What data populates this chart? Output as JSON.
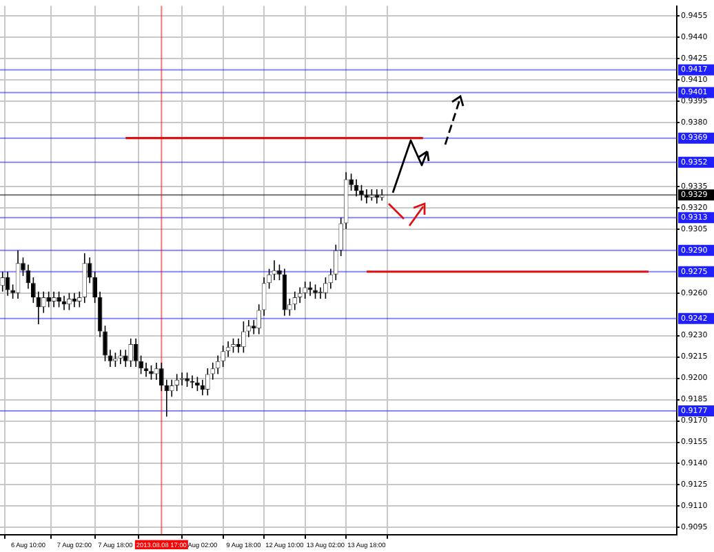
{
  "chart_data": {
    "type": "candlestick",
    "categories": [
      null,
      null,
      null,
      null,
      null,
      "6 Aug 10:00",
      null,
      null,
      null,
      null,
      null,
      null,
      null,
      null,
      "7 Aug 02:00",
      null,
      null,
      null,
      null,
      null,
      null,
      null,
      "7 Aug 18:00",
      null,
      null,
      null,
      null,
      null,
      null,
      null,
      null,
      "2013.08.08 17:00",
      null,
      null,
      null,
      null,
      null,
      null,
      null,
      "Aug 02:00",
      null,
      null,
      null,
      null,
      null,
      null,
      null,
      "9 Aug 18:00",
      null,
      null,
      null,
      null,
      null,
      null,
      null,
      "12 Aug 10:00",
      null,
      null,
      null,
      null,
      null,
      null,
      null,
      "13 Aug 02:00",
      null,
      null,
      null,
      null,
      null,
      null,
      null,
      "13 Aug 18:00",
      null,
      null,
      null,
      null,
      null,
      null,
      null,
      null,
      null,
      null,
      null,
      null,
      null,
      null,
      null,
      null,
      null,
      null,
      null,
      null,
      null,
      null,
      null,
      null,
      null,
      null,
      null,
      null,
      null,
      null,
      null,
      null,
      null,
      null,
      null,
      null,
      null,
      null,
      null,
      null,
      null,
      null,
      null,
      null,
      null,
      null,
      null,
      null,
      null,
      null,
      null,
      null,
      null,
      null,
      null,
      null,
      null,
      null,
      null,
      null
    ],
    "series": [
      {
        "type": "line",
        "color": "#e01010",
        "values": [
          null,
          null,
          null,
          null,
          null,
          null,
          null,
          null,
          null,
          null,
          null,
          null,
          null,
          null,
          null,
          null,
          null,
          null,
          null,
          null,
          null,
          null,
          null,
          null,
          0.9369,
          null,
          null,
          null,
          null,
          null,
          null,
          null,
          null,
          null,
          null,
          null,
          null,
          null,
          null,
          null,
          null,
          null,
          null,
          null,
          null,
          null,
          null,
          null,
          null,
          null,
          null,
          null,
          null,
          null,
          null,
          null,
          null,
          null,
          null,
          null,
          null,
          null,
          null,
          null,
          null,
          null,
          null,
          null,
          null,
          null,
          null,
          null,
          null,
          null,
          null,
          null,
          null,
          null,
          null,
          null,
          null,
          null,
          0.9369,
          null,
          null,
          null,
          null,
          null,
          null,
          null,
          null,
          null,
          null,
          null,
          null,
          null,
          null,
          null,
          null,
          null,
          null,
          null,
          null,
          null,
          null,
          null,
          null,
          null,
          null,
          null,
          null,
          null,
          null,
          null,
          null,
          null,
          null,
          null,
          null,
          null,
          null,
          null,
          null,
          null,
          null,
          null,
          null,
          null,
          null,
          null,
          null,
          null
        ]
      },
      {
        "type": "line",
        "color": "#e01010",
        "values": [
          null,
          null,
          null,
          null,
          null,
          null,
          null,
          null,
          null,
          null,
          null,
          null,
          null,
          null,
          null,
          null,
          null,
          null,
          null,
          null,
          null,
          null,
          null,
          null,
          null,
          null,
          null,
          null,
          null,
          null,
          null,
          null,
          null,
          null,
          null,
          null,
          null,
          null,
          null,
          null,
          null,
          null,
          null,
          null,
          null,
          null,
          null,
          null,
          null,
          null,
          null,
          null,
          null,
          null,
          null,
          null,
          null,
          null,
          null,
          null,
          null,
          null,
          null,
          null,
          null,
          null,
          null,
          null,
          null,
          null,
          null,
          0.9275,
          null,
          null,
          null,
          null,
          null,
          null,
          null,
          null,
          null,
          null,
          null,
          null,
          null,
          null,
          null,
          null,
          null,
          null,
          null,
          null,
          null,
          null,
          null,
          null,
          null,
          null,
          null,
          null,
          null,
          null,
          null,
          null,
          null,
          null,
          null,
          null,
          null,
          null,
          null,
          null,
          null,
          null,
          null,
          null,
          null,
          null,
          null,
          null,
          null,
          null,
          null,
          null,
          null,
          null,
          0.9275,
          null,
          null,
          null,
          null,
          null
        ]
      }
    ],
    "ohlc": [
      [
        0.9265,
        0.9275,
        0.9261,
        0.9271
      ],
      [
        0.9271,
        0.9275,
        0.9258,
        0.9262
      ],
      [
        0.9262,
        0.9266,
        0.9256,
        0.926
      ],
      [
        0.926,
        0.929,
        0.9256,
        0.9281
      ],
      [
        0.9281,
        0.9285,
        0.9272,
        0.9276
      ],
      [
        0.9276,
        0.928,
        0.9263,
        0.9267
      ],
      [
        0.9267,
        0.9271,
        0.9253,
        0.9257
      ],
      [
        0.9257,
        0.9261,
        0.9238,
        0.925
      ],
      [
        0.925,
        0.9261,
        0.9246,
        0.9257
      ],
      [
        0.9257,
        0.9261,
        0.925,
        0.9254
      ],
      [
        0.9254,
        0.9261,
        0.925,
        0.9257
      ],
      [
        0.9257,
        0.9261,
        0.925,
        0.9254
      ],
      [
        0.9254,
        0.9258,
        0.9248,
        0.9252
      ],
      [
        0.9252,
        0.926,
        0.9248,
        0.9256
      ],
      [
        0.9256,
        0.926,
        0.925,
        0.9254
      ],
      [
        0.9254,
        0.9261,
        0.925,
        0.9257
      ],
      [
        0.9257,
        0.9288,
        0.9253,
        0.9281
      ],
      [
        0.9281,
        0.9285,
        0.9267,
        0.9271
      ],
      [
        0.9271,
        0.9275,
        0.9253,
        0.9257
      ],
      [
        0.9257,
        0.9261,
        0.9229,
        0.9233
      ],
      [
        0.9233,
        0.9237,
        0.9212,
        0.9216
      ],
      [
        0.9216,
        0.922,
        0.9208,
        0.9212
      ],
      [
        0.9212,
        0.9218,
        0.9208,
        0.9214
      ],
      [
        0.9214,
        0.922,
        0.921,
        0.9216
      ],
      [
        0.9216,
        0.922,
        0.9208,
        0.9212
      ],
      [
        0.9212,
        0.9228,
        0.9208,
        0.9224
      ],
      [
        0.9224,
        0.9228,
        0.9208,
        0.9212
      ],
      [
        0.9212,
        0.9216,
        0.9203,
        0.9207
      ],
      [
        0.9207,
        0.9211,
        0.9201,
        0.9205
      ],
      [
        0.9205,
        0.9209,
        0.9199,
        0.9203
      ],
      [
        0.9203,
        0.9211,
        0.9199,
        0.9207
      ],
      [
        0.9207,
        0.9211,
        0.9191,
        0.9195
      ],
      [
        0.9195,
        0.9199,
        0.9173,
        0.9191
      ],
      [
        0.9191,
        0.9199,
        0.9187,
        0.9195
      ],
      [
        0.9195,
        0.9203,
        0.9191,
        0.9199
      ],
      [
        0.9199,
        0.9204,
        0.9195,
        0.92
      ],
      [
        0.92,
        0.9204,
        0.9194,
        0.9198
      ],
      [
        0.9198,
        0.9202,
        0.9193,
        0.9197
      ],
      [
        0.9197,
        0.9201,
        0.9191,
        0.9195
      ],
      [
        0.9195,
        0.9199,
        0.9188,
        0.9192
      ],
      [
        0.9192,
        0.9207,
        0.9188,
        0.9203
      ],
      [
        0.9203,
        0.9211,
        0.9199,
        0.9207
      ],
      [
        0.9207,
        0.9216,
        0.9203,
        0.9212
      ],
      [
        0.9212,
        0.9223,
        0.9208,
        0.9219
      ],
      [
        0.9219,
        0.9226,
        0.9215,
        0.9222
      ],
      [
        0.9222,
        0.9228,
        0.9218,
        0.9224
      ],
      [
        0.9224,
        0.9228,
        0.9218,
        0.9222
      ],
      [
        0.9222,
        0.924,
        0.9218,
        0.9233
      ],
      [
        0.9233,
        0.9241,
        0.9229,
        0.9237
      ],
      [
        0.9237,
        0.9241,
        0.9231,
        0.9235
      ],
      [
        0.9235,
        0.9252,
        0.9231,
        0.9248
      ],
      [
        0.9248,
        0.9271,
        0.9244,
        0.9267
      ],
      [
        0.9267,
        0.9277,
        0.9263,
        0.9273
      ],
      [
        0.9273,
        0.9283,
        0.9269,
        0.9276
      ],
      [
        0.9276,
        0.928,
        0.9269,
        0.9273
      ],
      [
        0.9273,
        0.9277,
        0.9244,
        0.9248
      ],
      [
        0.9248,
        0.9256,
        0.9244,
        0.9252
      ],
      [
        0.9252,
        0.9261,
        0.9248,
        0.9257
      ],
      [
        0.9257,
        0.9264,
        0.9253,
        0.926
      ],
      [
        0.926,
        0.9268,
        0.9256,
        0.9264
      ],
      [
        0.9264,
        0.9268,
        0.9258,
        0.9262
      ],
      [
        0.9262,
        0.9266,
        0.9256,
        0.926
      ],
      [
        0.926,
        0.9264,
        0.9256,
        0.926
      ],
      [
        0.926,
        0.9271,
        0.9256,
        0.9267
      ],
      [
        0.9267,
        0.9277,
        0.9263,
        0.9273
      ],
      [
        0.9273,
        0.9294,
        0.9269,
        0.929
      ],
      [
        0.929,
        0.9313,
        0.9286,
        0.9309
      ],
      [
        0.9309,
        0.9345,
        0.9305,
        0.934
      ],
      [
        0.934,
        0.9344,
        0.9332,
        0.9336
      ],
      [
        0.9336,
        0.934,
        0.9328,
        0.9332
      ],
      [
        0.9332,
        0.9336,
        0.9325,
        0.9329
      ],
      [
        0.9329,
        0.9333,
        0.9323,
        0.9327
      ],
      [
        0.9327,
        0.9333,
        0.9325,
        0.9329
      ],
      [
        0.9329,
        0.9333,
        0.9323,
        0.9327
      ],
      [
        0.9327,
        0.9333,
        0.9325,
        0.9329
      ],
      null,
      null,
      null,
      null,
      null,
      null,
      null,
      null,
      null,
      null,
      null,
      null,
      null,
      null,
      null,
      null,
      null,
      null,
      null,
      null,
      null,
      null,
      null,
      null,
      null,
      null,
      null,
      null,
      null,
      null,
      null,
      null,
      null,
      null,
      null,
      null,
      null,
      null,
      null,
      null,
      null,
      null,
      null,
      null,
      null,
      null,
      null,
      null,
      null,
      null,
      null,
      null,
      null,
      null,
      null,
      null,
      null
    ],
    "ylim": [
      0.909,
      0.9462
    ],
    "yticks": [
      0.9455,
      {
        "value": 0.944,
        "label": "0.9440"
      },
      0.9425,
      {
        "value": 0.941,
        "label": "0.9410"
      },
      0.9395,
      {
        "value": 0.938,
        "label": "0.9380"
      },
      0.9335,
      {
        "value": 0.932,
        "label": "0.9320"
      },
      0.9305,
      {
        "value": 0.926,
        "label": "0.9260"
      },
      {
        "value": 0.923,
        "label": "0.9230"
      },
      0.9215,
      {
        "value": 0.92,
        "label": "0.9200"
      },
      0.9185,
      {
        "value": 0.917,
        "label": "0.9170"
      },
      0.9155,
      {
        "value": 0.914,
        "label": "0.9140"
      },
      0.9125,
      {
        "value": 0.911,
        "label": "0.9110"
      },
      0.9095
    ],
    "grid": true,
    "ref_lines": [
      {
        "axis": "y",
        "value": 0.9417,
        "label": "0.9417",
        "color": "#2020ff"
      },
      {
        "axis": "y",
        "value": 0.9401,
        "label": "0.9401",
        "color": "#2020ff"
      },
      {
        "axis": "y",
        "value": 0.9369,
        "label": "0.9369",
        "color": "#2020ff"
      },
      {
        "axis": "y",
        "value": 0.9352,
        "label": "0.9352",
        "color": "#2020ff"
      },
      {
        "axis": "y",
        "value": 0.9329,
        "label": "0.9329",
        "color": "#000000"
      },
      {
        "axis": "y",
        "value": 0.9313,
        "label": "0.9313",
        "color": "#2020ff"
      },
      {
        "axis": "y",
        "value": 0.929,
        "label": "0.9290",
        "color": "#2020ff"
      },
      {
        "axis": "y",
        "value": 0.9275,
        "label": "0.9275",
        "color": "#2020ff"
      },
      {
        "axis": "y",
        "value": 0.9242,
        "label": "0.9242",
        "color": "#2020ff"
      },
      {
        "axis": "y",
        "value": 0.9177,
        "label": "0.9177",
        "color": "#2020ff"
      },
      {
        "axis": "x",
        "value": "2013.08.08 17:00",
        "color": "#ff0000"
      }
    ]
  }
}
